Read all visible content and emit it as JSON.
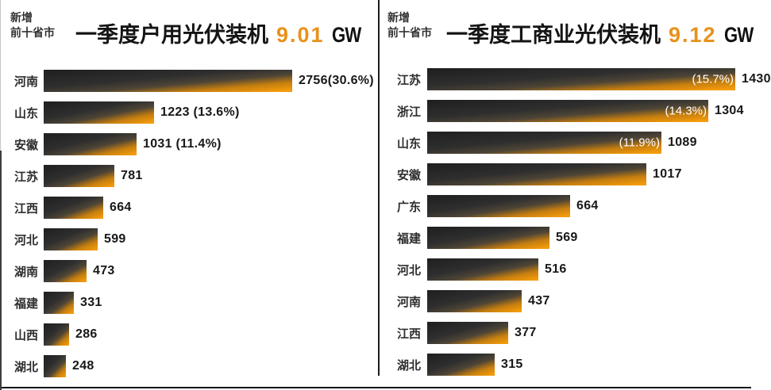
{
  "colors": {
    "accent_orange": "#E8911B",
    "bar_dark": "#242424",
    "bar_orange": "#F0990D",
    "text_dark": "#1f1f1f",
    "inside_label_white": "#ffffff"
  },
  "chart_data": [
    {
      "type": "bar",
      "orientation": "horizontal",
      "corner_label": [
        "新增",
        "前十省市"
      ],
      "title": "一季度户用光伏装机",
      "total": "9.01",
      "unit": "GW",
      "legend": null,
      "grid": false,
      "categories": [
        "河南",
        "山东",
        "安徽",
        "江苏",
        "江西",
        "河北",
        "湖南",
        "福建",
        "山西",
        "湖北"
      ],
      "values": [
        2756,
        1223,
        1031,
        781,
        664,
        599,
        473,
        331,
        286,
        248
      ],
      "percent_of_total": [
        "30.6%",
        "13.6%",
        "11.4%",
        null,
        null,
        null,
        null,
        null,
        null,
        null
      ],
      "value_labels": [
        "2756(30.6%)",
        "1223 (13.6%)",
        "1031 (11.4%)",
        "781",
        "664",
        "599",
        "473",
        "331",
        "286",
        "248"
      ],
      "inside_labels": [
        null,
        null,
        null,
        null,
        null,
        null,
        null,
        null,
        null,
        null
      ]
    },
    {
      "type": "bar",
      "orientation": "horizontal",
      "corner_label": [
        "新增",
        "前十省市"
      ],
      "title": "一季度工商业光伏装机",
      "total": "9.12",
      "unit": "GW",
      "legend": null,
      "grid": false,
      "categories": [
        "江苏",
        "浙江",
        "山东",
        "安徽",
        "广东",
        "福建",
        "河北",
        "河南",
        "江西",
        "湖北"
      ],
      "values": [
        1430,
        1304,
        1089,
        1017,
        664,
        569,
        516,
        437,
        377,
        315
      ],
      "percent_of_total": [
        "15.7%",
        "14.3%",
        "11.9%",
        null,
        null,
        null,
        null,
        null,
        null,
        null
      ],
      "value_labels": [
        "1430",
        "1304",
        "1089",
        "1017",
        "664",
        "569",
        "516",
        "437",
        "377",
        "315"
      ],
      "inside_labels": [
        "(15.7%)",
        "(14.3%)",
        "(11.9%)",
        null,
        null,
        null,
        null,
        null,
        null,
        null
      ]
    }
  ]
}
